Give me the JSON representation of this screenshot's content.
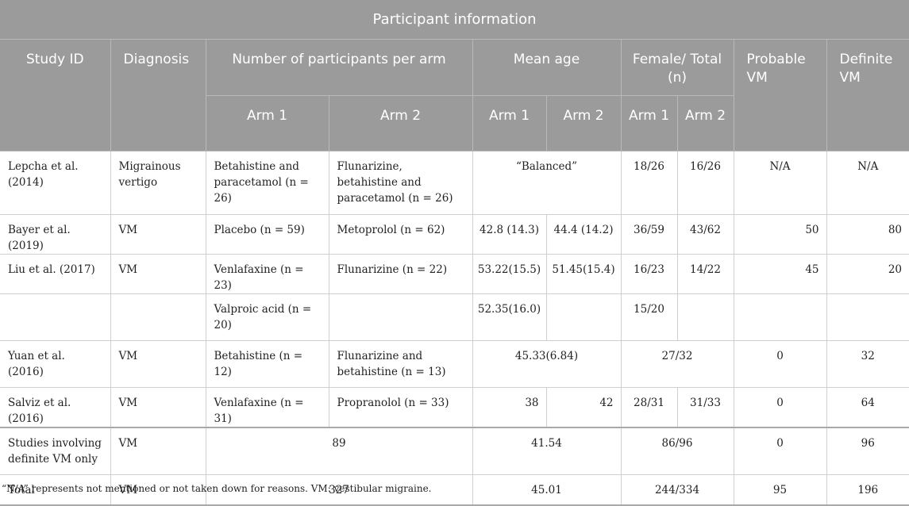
{
  "header": {
    "top_title": "Participant information",
    "study_id": "Study ID",
    "diagnosis": "Diagnosis",
    "num_participants": "Number of participants per arm",
    "mean_age": "Mean age",
    "female_total": "Female/ Total (n)",
    "probable_vm": "Probable VM",
    "definite_vm": "Definite VM",
    "arm1": "Arm 1",
    "arm2": "Arm 2"
  },
  "rows": [
    {
      "study": "Lepcha et al. (2014)",
      "diagnosis": "Migrainous vertigo",
      "arm1": "Betahistine and paracetamol (n = 26)",
      "arm2": "Flunarizine, betahistine and paracetamol (n = 26)",
      "age": "“Balanced”",
      "f1": "18/26",
      "f2": "16/26",
      "probable": "N/A",
      "definite": "N/A"
    },
    {
      "study": "Bayer et al. (2019)",
      "diagnosis": "VM",
      "arm1": "Placebo (n = 59)",
      "arm2": "Metoprolol (n = 62)",
      "age1": "42.8 (14.3)",
      "age2": "44.4 (14.2)",
      "f1": "36/59",
      "f2": "43/62",
      "probable": "50",
      "definite": "80"
    },
    {
      "study": "Liu et al. (2017)",
      "diagnosis": "VM",
      "arm1": "Venlafaxine (n = 23)",
      "arm2": "Flunarizine (n = 22)",
      "age1": "53.22(15.5)",
      "age2": "51.45(15.4)",
      "f1": "16/23",
      "f2": "14/22",
      "probable": "45",
      "definite": "20"
    },
    {
      "arm1": "Valproic acid (n = 20)",
      "age1": "52.35(16.0)",
      "f1": "15/20"
    },
    {
      "study": "Yuan et al. (2016)",
      "diagnosis": "VM",
      "arm1": "Betahistine (n = 12)",
      "arm2": "Flunarizine and betahistine (n = 13)",
      "age": "45.33(6.84)",
      "f": "27/32",
      "probable": "0",
      "definite": "32"
    },
    {
      "study": "Salviz et al. (2016)",
      "diagnosis": "VM",
      "arm1": "Venlafaxine (n = 31)",
      "arm2": "Propranolol (n = 33)",
      "age1": "38",
      "age2": "42",
      "f1": "28/31",
      "f2": "31/33",
      "probable": "0",
      "definite": "64"
    },
    {
      "study": "Studies involving definite VM only",
      "diagnosis": "VM",
      "participants": "89",
      "age": "41.54",
      "f": "86/96",
      "probable": "0",
      "definite": "96"
    },
    {
      "study": "Total",
      "diagnosis": "VM",
      "participants": "327",
      "age": "45.01",
      "f": "244/334",
      "probable": "95",
      "definite": "196"
    }
  ],
  "footnote": "“N/A” represents not mentioned or not taken down for reasons. VM: vestibular migraine."
}
